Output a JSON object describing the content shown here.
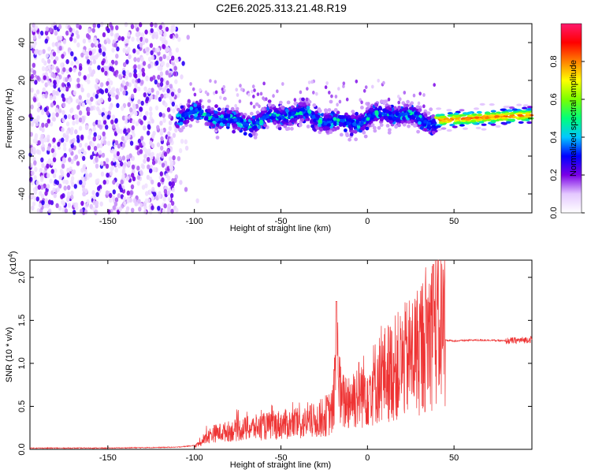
{
  "title": "C2E6.2025.313.21.48.R19",
  "chart_data": [
    {
      "type": "heatmap",
      "xlabel": "Height of straight line (km)",
      "ylabel": "Frequency (Hz)",
      "xlim": [
        -195,
        95
      ],
      "ylim": [
        -50,
        50
      ],
      "xticks": [
        -150,
        -100,
        -50,
        0,
        50
      ],
      "yticks": [
        -40,
        -20,
        0,
        20,
        40
      ],
      "colorbar": {
        "label": "Normalized spectral amplitude",
        "range": [
          0,
          1
        ],
        "ticks": [
          0.0,
          0.2,
          0.4,
          0.6,
          0.8
        ],
        "colormap": [
          "#ffffff",
          "#e4c8ff",
          "#7a00e6",
          "#0000ff",
          "#00c8ff",
          "#00ff7a",
          "#7aff00",
          "#ffff00",
          "#ff8000",
          "#ff0000",
          "#ff1a6e"
        ]
      },
      "regions": [
        {
          "x": [
            -195,
            -110
          ],
          "description_level": 0.15,
          "freq_spread": 50
        },
        {
          "x": [
            -110,
            40
          ],
          "center_freq": 0,
          "band_halfwidth": 5,
          "level": 0.35
        },
        {
          "x": [
            40,
            95
          ],
          "center_freq": -1,
          "level": 0.85
        }
      ]
    },
    {
      "type": "line",
      "xlabel": "Height of straight line (km)",
      "ylabel": "SNR (10 * v/v)",
      "yscale_label": "(x10",
      "yscale_exp": "4",
      "yscale_close": ")",
      "xlim": [
        -195,
        95
      ],
      "ylim": [
        0,
        2.2
      ],
      "xticks": [
        -150,
        -100,
        -50,
        0,
        50
      ],
      "yticks": [
        0.0,
        0.5,
        1.0,
        1.5,
        2.0
      ],
      "color": "#ee3333",
      "series": [
        {
          "x": [
            -195,
            -150,
            -110,
            -100,
            -95,
            -90,
            -80,
            -70,
            -60,
            -50,
            -40,
            -30,
            -20,
            -18,
            -15,
            -10,
            0,
            10,
            20,
            30,
            35,
            40,
            44,
            45,
            50,
            60,
            70,
            80,
            90,
            95
          ],
          "y": [
            0.01,
            0.01,
            0.02,
            0.04,
            0.12,
            0.22,
            0.25,
            0.28,
            0.3,
            0.32,
            0.32,
            0.35,
            0.45,
            1.1,
            0.55,
            0.6,
            0.7,
            0.85,
            0.95,
            1.1,
            1.25,
            1.3,
            1.35,
            1.27,
            1.26,
            1.27,
            1.27,
            1.26,
            1.27,
            1.28
          ]
        }
      ]
    }
  ]
}
